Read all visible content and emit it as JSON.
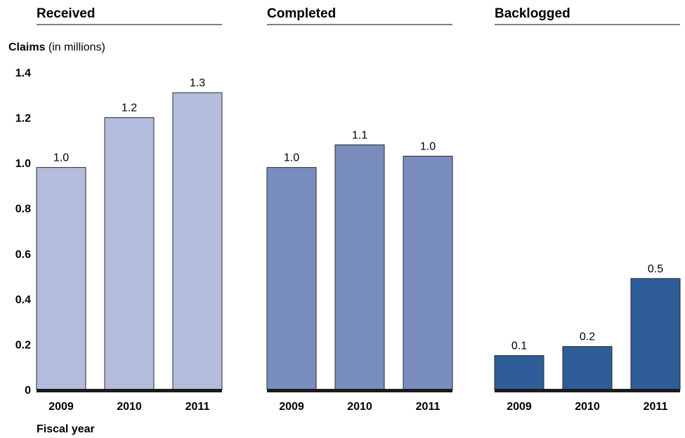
{
  "chart_data": [
    {
      "type": "bar",
      "title": "Received",
      "ylabel_bold": "Claims",
      "ylabel_rest": " (in millions)",
      "xlabel": "Fiscal year",
      "categories": [
        "2009",
        "2010",
        "2011"
      ],
      "values": [
        0.98,
        1.2,
        1.31
      ],
      "value_labels": [
        "1.0",
        "1.2",
        "1.3"
      ],
      "yticks": [
        "0",
        "0.2",
        "0.4",
        "0.6",
        "0.8",
        "1.0",
        "1.2",
        "1.4"
      ],
      "ylim": [
        0,
        1.4
      ],
      "color": "#b3bcdc"
    },
    {
      "type": "bar",
      "title": "Completed",
      "categories": [
        "2009",
        "2010",
        "2011"
      ],
      "values": [
        0.98,
        1.08,
        1.03
      ],
      "value_labels": [
        "1.0",
        "1.1",
        "1.0"
      ],
      "ylim": [
        0,
        1.4
      ],
      "color": "#7a8dbf"
    },
    {
      "type": "bar",
      "title": "Backlogged",
      "categories": [
        "2009",
        "2010",
        "2011"
      ],
      "values": [
        0.15,
        0.19,
        0.49
      ],
      "value_labels": [
        "0.1",
        "0.2",
        "0.5"
      ],
      "ylim": [
        0,
        1.4
      ],
      "color": "#2f5d9a"
    }
  ]
}
